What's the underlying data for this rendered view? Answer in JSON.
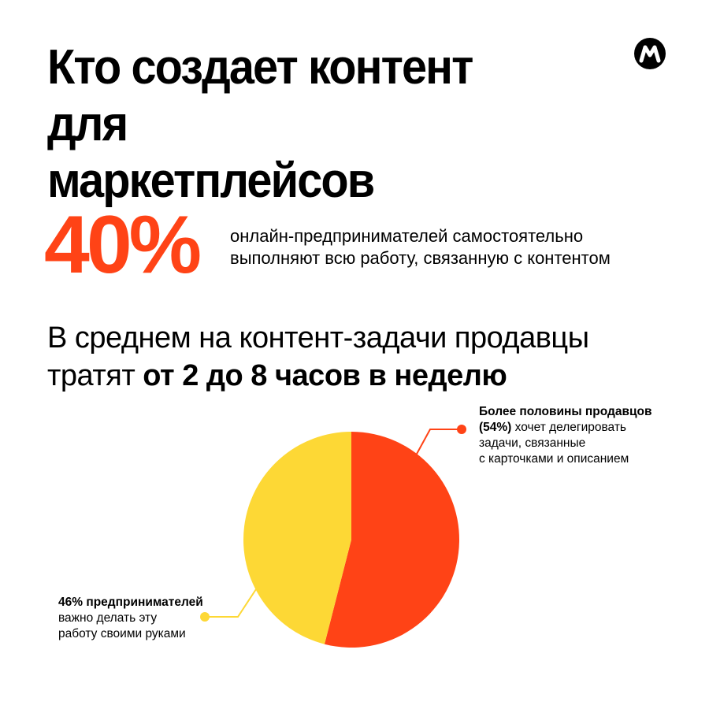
{
  "header": {
    "title_line1": "Кто создает контент для",
    "title_line2": "маркетплейсов",
    "logo_icon": "market-logo-icon"
  },
  "stat": {
    "value": "40%",
    "desc_line1": "онлайн-предпринимателей самостоятельно",
    "desc_line2": "выполняют всю работу, связанную с контентом"
  },
  "average": {
    "line1": "В среднем на контент-задачи продавцы",
    "line2_prefix": "тратят ",
    "line2_bold": "от 2 до 8 часов в неделю"
  },
  "colors": {
    "accent": "#ff4316",
    "yellow": "#fdd835",
    "logo": "#000000"
  },
  "chart_data": {
    "type": "pie",
    "title": "",
    "slices": [
      {
        "label": "54%",
        "value": 54,
        "color": "#ff4316"
      },
      {
        "label": "46%",
        "value": 46,
        "color": "#fdd835"
      }
    ],
    "annotations": [
      {
        "bold": "Более половины продавцов (54%)",
        "text_line1": " хочет делегировать",
        "text_line2": "задачи, связанные",
        "text_line3": "с карточками и описанием"
      },
      {
        "bold": "46% предпринимателей",
        "text_line1": "важно делать эту",
        "text_line2": "работу своими руками"
      }
    ]
  }
}
